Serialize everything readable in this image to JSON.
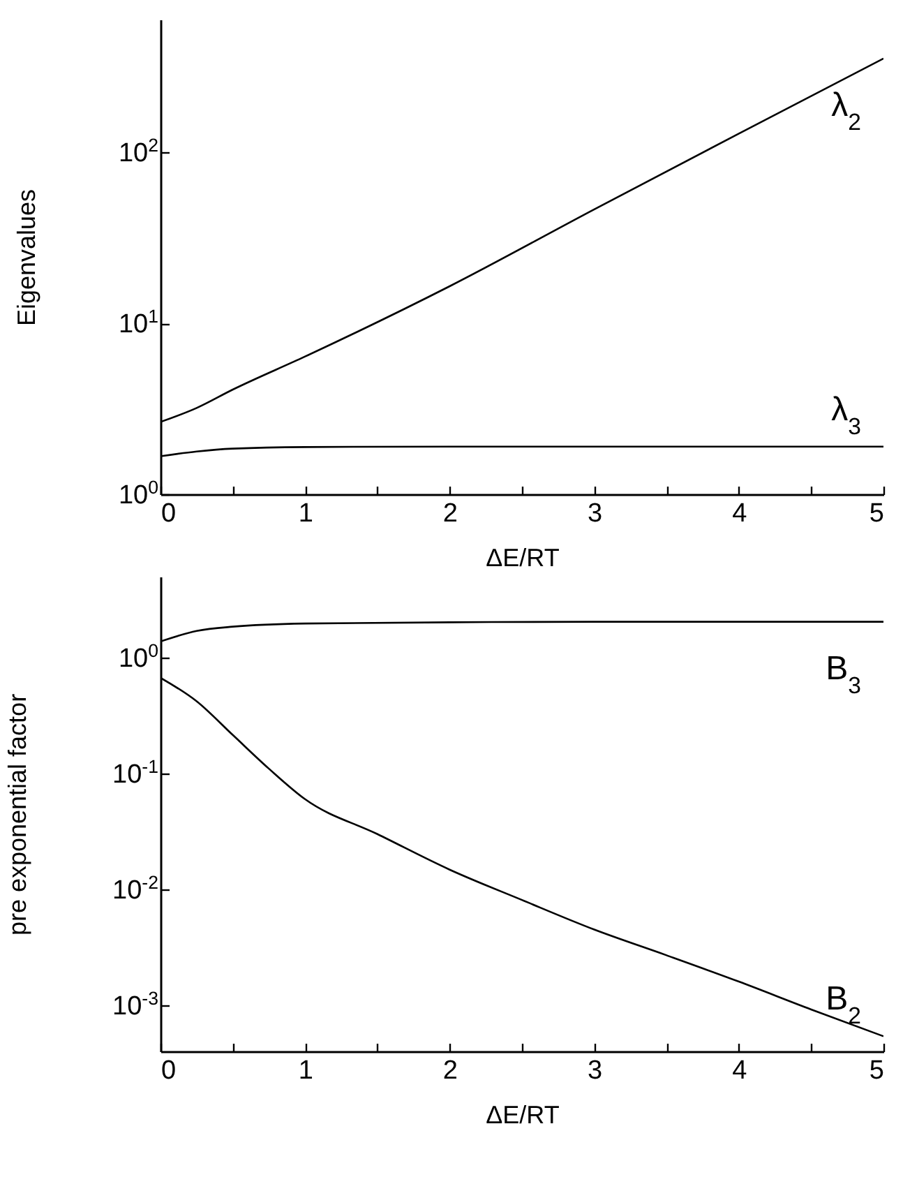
{
  "chart_data": [
    {
      "type": "line",
      "xlabel": "ΔE/RT",
      "ylabel": "Eigenvalues",
      "log": "y",
      "grid": false,
      "marker": "none",
      "line_style": "solid",
      "xlim": [
        0,
        5
      ],
      "xticks": [
        0,
        {
          "value": 0.5,
          "label": null
        },
        1,
        {
          "value": 1.5,
          "label": null
        },
        2,
        {
          "value": 2.5,
          "label": null
        },
        3,
        {
          "value": 3.5,
          "label": null
        },
        4,
        {
          "value": 4.5,
          "label": null
        },
        5
      ],
      "ylim": [
        1,
        600
      ],
      "yticks": [
        {
          "value": 1,
          "label": "10$^{0}$"
        },
        {
          "value": 10,
          "label": "10$^{1}$"
        },
        {
          "value": 100,
          "label": "10$^{2}$"
        }
      ],
      "series": [
        {
          "name": "λ$_{2}$",
          "color": "#000000",
          "x": [
            0,
            0.25,
            0.5,
            1,
            2,
            3,
            4,
            5
          ],
          "values": [
            2.65,
            3.2,
            4.1,
            6.4,
            16.5,
            46.5,
            129,
            355
          ]
        },
        {
          "name": "λ$_{3}$",
          "color": "#000000",
          "x": [
            0,
            0.25,
            0.5,
            1,
            2,
            3,
            4,
            5
          ],
          "values": [
            1.67,
            1.78,
            1.85,
            1.89,
            1.9,
            1.9,
            1.9,
            1.9
          ]
        }
      ]
    },
    {
      "type": "line",
      "xlabel": "ΔE/RT",
      "ylabel": "pre exponential factor",
      "log": "y",
      "grid": false,
      "marker": "none",
      "line_style": "solid",
      "xlim": [
        0,
        5
      ],
      "xticks": [
        0,
        {
          "value": 0.5,
          "label": null
        },
        1,
        {
          "value": 1.5,
          "label": null
        },
        2,
        {
          "value": 2.5,
          "label": null
        },
        3,
        {
          "value": 3.5,
          "label": null
        },
        4,
        {
          "value": 4.5,
          "label": null
        },
        5
      ],
      "ylim": [
        0.0004,
        5
      ],
      "yticks": [
        {
          "value": 0.001,
          "label": "10$^{-3}$"
        },
        {
          "value": 0.01,
          "label": "10$^{-2}$"
        },
        {
          "value": 0.1,
          "label": "10$^{-1}$"
        },
        {
          "value": 1,
          "label": "10$^{0}$"
        }
      ],
      "series": [
        {
          "name": "B$_{3}$",
          "color": "#000000",
          "x": [
            0,
            0.25,
            0.5,
            1,
            2,
            3,
            4,
            5
          ],
          "values": [
            1.38,
            1.7,
            1.85,
            1.97,
            2.02,
            2.04,
            2.04,
            2.04
          ]
        },
        {
          "name": "B$_{2}$",
          "color": "#000000",
          "x": [
            0,
            0.25,
            0.5,
            0.75,
            1,
            1.5,
            2,
            2.5,
            3,
            3.5,
            4,
            4.5,
            5
          ],
          "values": [
            0.67,
            0.42,
            0.215,
            0.11,
            0.06,
            0.03,
            0.0148,
            0.0081,
            0.0045,
            0.0027,
            0.0016,
            0.00092,
            0.00054
          ]
        }
      ]
    }
  ]
}
